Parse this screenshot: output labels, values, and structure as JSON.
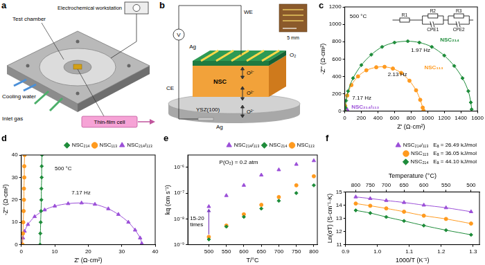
{
  "diagrams": {
    "a": {
      "panel": "a",
      "test_chamber": "Test chamber",
      "workstation": "Electrochemical workstation",
      "cooling_water": "Cooling water",
      "inlet_gas": "Inlet gas",
      "cell": "Thin-film cell"
    },
    "b": {
      "panel": "b",
      "we": "WE",
      "v": "V",
      "o2": "O₂",
      "ag_top": "Ag",
      "nsc": "NSC",
      "ion": "O²⁻",
      "substrate": "YSZ(100)",
      "ag_bottom": "Ag",
      "ce": "CE",
      "scale": "5 mm"
    }
  },
  "chart_data": [
    {
      "panel": "c",
      "type": "scatter",
      "x_label": "Z' (Ω·cm²)",
      "y_label": "-Z'' (Ω·cm²)",
      "xlim": [
        0,
        1600
      ],
      "xticks": [
        0,
        200,
        400,
        600,
        800,
        1000,
        1200,
        1400,
        1600
      ],
      "ylim": [
        0,
        1200
      ],
      "yticks": [
        0,
        200,
        400,
        600,
        800,
        1000,
        1200
      ],
      "grid": false,
      "circuit": [
        "R1",
        "R2",
        "CPE1",
        "R3",
        "CPE2"
      ],
      "annotations": [
        {
          "text": "500 °C",
          "x": 60,
          "y": 1090
        },
        {
          "text": "1.97 Hz",
          "x": 800,
          "y": 700
        },
        {
          "text": "2.13 Hz",
          "x": 520,
          "y": 420
        },
        {
          "text": "7.17 Hz",
          "x": 90,
          "y": 150
        }
      ],
      "series": [
        {
          "name": "NSC₂₁₄",
          "color": "#1e8c3a",
          "marker": "diamond",
          "line_style": "solid",
          "label_at": [
            1150,
            820
          ],
          "x": [
            5,
            8,
            15,
            40,
            100,
            200,
            320,
            450,
            600,
            760,
            900,
            1050,
            1200,
            1320,
            1420,
            1490,
            1520,
            1530
          ],
          "values": [
            0,
            40,
            120,
            230,
            380,
            530,
            650,
            740,
            790,
            805,
            790,
            740,
            640,
            520,
            380,
            230,
            100,
            20
          ]
        },
        {
          "name": "NSC₁₁₃",
          "color": "#ff9a1f",
          "marker": "circle",
          "line_style": "solid",
          "label_at": [
            960,
            500
          ],
          "x": [
            1,
            5,
            30,
            80,
            160,
            260,
            380,
            480,
            580,
            680,
            780,
            860,
            910,
            940,
            950
          ],
          "values": [
            0,
            60,
            180,
            300,
            400,
            470,
            505,
            510,
            490,
            440,
            350,
            240,
            130,
            40,
            5
          ]
        },
        {
          "name": "NSC₂₁₄/₁₁₃",
          "color": "#9b4fd8",
          "marker": "triangle",
          "line_style": "solid",
          "label_at": [
            80,
            50
          ],
          "x": [
            0.2,
            0.5,
            1,
            2,
            4,
            7,
            10,
            14,
            18,
            22,
            26,
            29,
            32,
            34,
            35.5,
            36
          ],
          "values": [
            0,
            3,
            6,
            9,
            12.5,
            15.5,
            17.2,
            18.3,
            18.6,
            18,
            16,
            13.5,
            10,
            6.5,
            3,
            0.5
          ]
        }
      ]
    },
    {
      "panel": "d",
      "type": "scatter",
      "x_label": "Z' (Ω·cm²)",
      "y_label": "-Z'' (Ω·cm²)",
      "xlim": [
        0,
        40
      ],
      "xticks": [
        0,
        10,
        20,
        30,
        40
      ],
      "ylim": [
        0,
        40
      ],
      "yticks": [
        0,
        10,
        20,
        30,
        40
      ],
      "grid": false,
      "legend": "top-right",
      "annotations": [
        {
          "text": "500 °C",
          "x": 10,
          "y": 34
        },
        {
          "text": "7.17 Hz",
          "x": 15,
          "y": 23
        }
      ],
      "series": [
        {
          "name": "NSC₂₁₄",
          "color": "#1e8c3a",
          "marker": "diamond",
          "line_style": "solid",
          "x": [
            5.6,
            5.7,
            5.8,
            5.9,
            6.0,
            6.0,
            6.1,
            6.1,
            6.2
          ],
          "values": [
            0,
            5,
            10,
            15,
            20,
            25,
            30,
            35,
            40
          ]
        },
        {
          "name": "NSC₁₁₃",
          "color": "#ff9a1f",
          "marker": "circle",
          "line_style": "solid",
          "x": [
            0.4,
            0.5,
            0.6,
            0.7,
            0.8,
            0.8,
            0.9,
            0.9,
            1.0
          ],
          "values": [
            0,
            5,
            10,
            15,
            20,
            25,
            30,
            35,
            40
          ]
        },
        {
          "name": "NSC₂₁₄/₁₁₃",
          "color": "#9b4fd8",
          "marker": "triangle",
          "line_style": "solid",
          "x": [
            0.2,
            0.5,
            1,
            2,
            4,
            7,
            10,
            14,
            18,
            22,
            26,
            29,
            32,
            34,
            35.5,
            36
          ],
          "values": [
            0,
            3,
            6,
            9,
            12.5,
            15.5,
            17.2,
            18.3,
            18.6,
            18,
            16,
            13.5,
            10,
            6.5,
            3,
            0.5
          ]
        }
      ]
    },
    {
      "panel": "e",
      "type": "scatter",
      "x_label": "T/°C",
      "y_label": "kq (cm s⁻¹)",
      "log": "y",
      "xlim": [
        440,
        810
      ],
      "xticks": [
        500,
        550,
        600,
        650,
        700,
        750,
        800
      ],
      "ylim": [
        1e-09,
        3e-06
      ],
      "yticks": [
        {
          "value": 1e-09,
          "label": "10⁻⁹"
        },
        {
          "value": 1e-08,
          "label": "10⁻⁸"
        },
        {
          "value": 1e-07,
          "label": "10⁻⁷"
        },
        {
          "value": 1e-06,
          "label": "10⁻⁶"
        }
      ],
      "grid": false,
      "legend": "top-right",
      "annotations": [
        {
          "text": "P(O₂) = 0.2 atm",
          "x": 530,
          "y": 1.5e-06
        },
        {
          "text": [
            "15-20",
            "times"
          ],
          "x": 446,
          "y": 8e-09
        }
      ],
      "arrows": [
        {
          "x": 500,
          "from": 2.5e-09,
          "to": 2.5e-08
        }
      ],
      "series": [
        {
          "name": "NSC₂₁₄/₁₁₃",
          "color": "#9b4fd8",
          "marker": "triangle",
          "line_style": "none",
          "x": [
            500,
            550,
            600,
            650,
            700,
            750,
            800
          ],
          "values": [
            3e-08,
            8e-08,
            2e-07,
            5e-07,
            8e-07,
            1.3e-06,
            1.8e-06
          ]
        },
        {
          "name": "NSC₂₁₄",
          "color": "#1e8c3a",
          "marker": "diamond",
          "line_style": "none",
          "x": [
            500,
            550,
            600,
            650,
            700,
            750,
            800
          ],
          "values": [
            1.6e-09,
            5e-09,
            1.2e-08,
            2.5e-08,
            5e-08,
            1e-07,
            2e-07
          ]
        },
        {
          "name": "NSC₁₁₃",
          "color": "#ff9a1f",
          "marker": "circle",
          "line_style": "none",
          "x": [
            500,
            550,
            600,
            650,
            700,
            750,
            800
          ],
          "values": [
            2e-09,
            5.5e-09,
            1.5e-08,
            3.5e-08,
            7e-08,
            2e-07,
            4.5e-07
          ]
        }
      ]
    },
    {
      "panel": "f",
      "type": "scatter",
      "x_label": "1000/T (K⁻¹)",
      "y_label": "Ln(σT) (S·cm⁻¹·K)",
      "xlim": [
        0.9,
        1.32
      ],
      "xticks": [
        0.9,
        {
          "value": 1,
          "label": "1.0"
        },
        1.1,
        1.2,
        1.3
      ],
      "ylim": [
        11,
        15
      ],
      "yticks": [
        11,
        12,
        13,
        14,
        15
      ],
      "grid": false,
      "legend": "top-right",
      "x2_label": "Temperature (°C)",
      "x2ticks": [
        {
          "value": 0.932,
          "label": "800"
        },
        {
          "value": 0.9775,
          "label": "750"
        },
        {
          "value": 1.0277,
          "label": "700"
        },
        {
          "value": 1.0834,
          "label": "650"
        },
        {
          "value": 1.1455,
          "label": "600"
        },
        {
          "value": 1.2151,
          "label": "550"
        },
        {
          "value": 1.2937,
          "label": "500"
        }
      ],
      "series": [
        {
          "name": "NSC₂₁₄/₁₁₃",
          "ea_label": "Eₐ = 26.49 kJ/mol",
          "color": "#9b4fd8",
          "marker": "triangle",
          "line_style": "solid",
          "x": [
            0.932,
            0.9775,
            1.0277,
            1.0834,
            1.1455,
            1.2151,
            1.2937
          ],
          "values": [
            14.62,
            14.5,
            14.35,
            14.2,
            14.0,
            13.8,
            13.5
          ]
        },
        {
          "name": "NSC₁₁₃",
          "ea_label": "Eₐ = 36.05 kJ/mol",
          "color": "#ff9a1f",
          "marker": "circle",
          "line_style": "solid",
          "x": [
            0.932,
            0.9775,
            1.0277,
            1.0834,
            1.1455,
            1.2151,
            1.2937
          ],
          "values": [
            14.12,
            13.95,
            13.75,
            13.5,
            13.2,
            12.95,
            12.6
          ]
        },
        {
          "name": "NSC₂₁₄",
          "ea_label": "Eₐ = 44.10 kJ/mol",
          "color": "#1e8c3a",
          "marker": "diamond",
          "line_style": "solid",
          "x": [
            0.932,
            0.9775,
            1.0277,
            1.0834,
            1.1455,
            1.2151,
            1.2937
          ],
          "values": [
            13.6,
            13.4,
            13.1,
            12.8,
            12.45,
            12.1,
            11.75
          ]
        }
      ]
    }
  ]
}
